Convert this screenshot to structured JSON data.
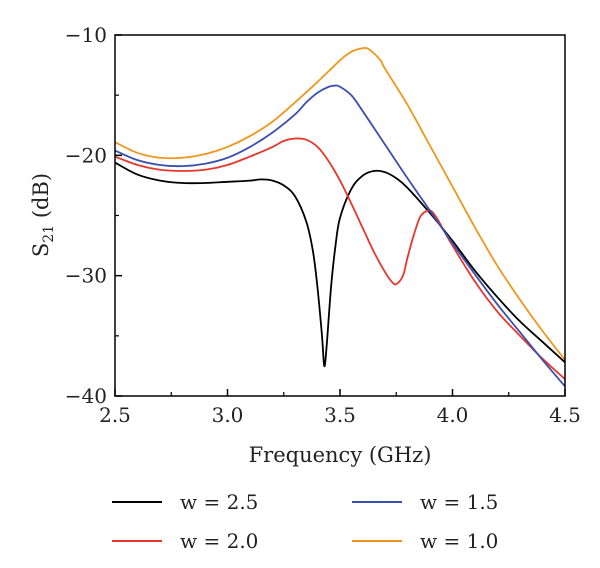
{
  "chart_data": {
    "type": "line",
    "title": "",
    "xlabel": "Frequency (GHz)",
    "ylabel_main": "S",
    "ylabel_sub": "21",
    "ylabel_unit": " (dB)",
    "xlim": [
      2.5,
      4.5
    ],
    "ylim": [
      -40,
      -10
    ],
    "xticks": [
      2.5,
      3.0,
      3.5,
      4.0,
      4.5
    ],
    "xtick_labels": [
      "2.5",
      "3.0",
      "3.5",
      "4.0",
      "4.5"
    ],
    "yticks": [
      -10,
      -20,
      -30,
      -40
    ],
    "ytick_labels": [
      "−10",
      "−20",
      "−30",
      "−40"
    ],
    "grid": false,
    "legend_position": "bottom",
    "series": [
      {
        "name": "w = 2.5",
        "color": "#000000",
        "points": [
          [
            2.5,
            -20.6
          ],
          [
            2.6,
            -21.6
          ],
          [
            2.7,
            -22.1
          ],
          [
            2.8,
            -22.3
          ],
          [
            2.9,
            -22.3
          ],
          [
            3.0,
            -22.2
          ],
          [
            3.1,
            -22.1
          ],
          [
            3.15,
            -22.0
          ],
          [
            3.2,
            -22.1
          ],
          [
            3.25,
            -22.5
          ],
          [
            3.3,
            -23.4
          ],
          [
            3.35,
            -25.5
          ],
          [
            3.38,
            -28.0
          ],
          [
            3.4,
            -31.0
          ],
          [
            3.42,
            -35.0
          ],
          [
            3.43,
            -37.5
          ],
          [
            3.44,
            -36.0
          ],
          [
            3.46,
            -31.0
          ],
          [
            3.48,
            -27.5
          ],
          [
            3.5,
            -25.2
          ],
          [
            3.55,
            -22.8
          ],
          [
            3.6,
            -21.7
          ],
          [
            3.65,
            -21.3
          ],
          [
            3.7,
            -21.4
          ],
          [
            3.75,
            -21.9
          ],
          [
            3.8,
            -22.7
          ],
          [
            3.9,
            -24.8
          ],
          [
            4.0,
            -27.1
          ],
          [
            4.1,
            -29.6
          ],
          [
            4.2,
            -31.8
          ],
          [
            4.3,
            -33.8
          ],
          [
            4.4,
            -35.5
          ],
          [
            4.5,
            -37.2
          ]
        ]
      },
      {
        "name": "w = 2.0",
        "color": "#e8362b",
        "points": [
          [
            2.5,
            -20.1
          ],
          [
            2.6,
            -20.8
          ],
          [
            2.7,
            -21.2
          ],
          [
            2.8,
            -21.3
          ],
          [
            2.9,
            -21.2
          ],
          [
            3.0,
            -20.8
          ],
          [
            3.1,
            -20.1
          ],
          [
            3.2,
            -19.3
          ],
          [
            3.25,
            -18.8
          ],
          [
            3.3,
            -18.6
          ],
          [
            3.35,
            -18.7
          ],
          [
            3.4,
            -19.3
          ],
          [
            3.45,
            -20.5
          ],
          [
            3.5,
            -22.1
          ],
          [
            3.55,
            -24.0
          ],
          [
            3.6,
            -26.0
          ],
          [
            3.65,
            -28.0
          ],
          [
            3.7,
            -29.7
          ],
          [
            3.73,
            -30.5
          ],
          [
            3.75,
            -30.7
          ],
          [
            3.78,
            -30.0
          ],
          [
            3.8,
            -28.5
          ],
          [
            3.83,
            -26.5
          ],
          [
            3.86,
            -25.0
          ],
          [
            3.9,
            -24.6
          ],
          [
            3.93,
            -25.2
          ],
          [
            3.96,
            -26.2
          ],
          [
            4.0,
            -27.5
          ],
          [
            4.1,
            -30.5
          ],
          [
            4.2,
            -33.0
          ],
          [
            4.3,
            -35.0
          ],
          [
            4.4,
            -36.9
          ],
          [
            4.5,
            -38.6
          ]
        ]
      },
      {
        "name": "w = 1.5",
        "color": "#3a4fb0",
        "points": [
          [
            2.5,
            -19.6
          ],
          [
            2.6,
            -20.4
          ],
          [
            2.7,
            -20.8
          ],
          [
            2.8,
            -20.9
          ],
          [
            2.9,
            -20.7
          ],
          [
            3.0,
            -20.2
          ],
          [
            3.1,
            -19.3
          ],
          [
            3.2,
            -18.1
          ],
          [
            3.3,
            -16.6
          ],
          [
            3.35,
            -15.6
          ],
          [
            3.4,
            -14.8
          ],
          [
            3.45,
            -14.3
          ],
          [
            3.48,
            -14.2
          ],
          [
            3.5,
            -14.3
          ],
          [
            3.55,
            -15.0
          ],
          [
            3.6,
            -16.3
          ],
          [
            3.7,
            -19.1
          ],
          [
            3.8,
            -21.9
          ],
          [
            3.9,
            -24.6
          ],
          [
            4.0,
            -27.3
          ],
          [
            4.1,
            -29.9
          ],
          [
            4.2,
            -32.4
          ],
          [
            4.3,
            -34.7
          ],
          [
            4.4,
            -37.0
          ],
          [
            4.5,
            -39.2
          ]
        ]
      },
      {
        "name": "w = 1.0",
        "color": "#f0961e",
        "points": [
          [
            2.5,
            -18.9
          ],
          [
            2.6,
            -19.8
          ],
          [
            2.7,
            -20.2
          ],
          [
            2.8,
            -20.2
          ],
          [
            2.9,
            -19.9
          ],
          [
            3.0,
            -19.3
          ],
          [
            3.1,
            -18.4
          ],
          [
            3.2,
            -17.2
          ],
          [
            3.3,
            -15.6
          ],
          [
            3.4,
            -13.9
          ],
          [
            3.5,
            -12.1
          ],
          [
            3.55,
            -11.4
          ],
          [
            3.6,
            -11.1
          ],
          [
            3.63,
            -11.2
          ],
          [
            3.68,
            -12.1
          ],
          [
            3.7,
            -12.8
          ],
          [
            3.8,
            -15.8
          ],
          [
            3.9,
            -19.2
          ],
          [
            4.0,
            -22.6
          ],
          [
            4.1,
            -26.0
          ],
          [
            4.2,
            -29.2
          ],
          [
            4.3,
            -32.0
          ],
          [
            4.4,
            -34.6
          ],
          [
            4.5,
            -37.0
          ]
        ]
      }
    ]
  }
}
